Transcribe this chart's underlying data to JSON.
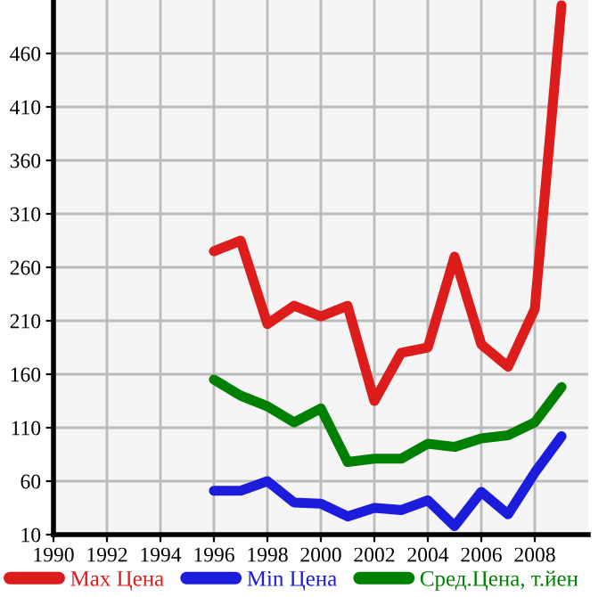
{
  "chart_data": {
    "type": "line",
    "x": [
      1996,
      1997,
      1998,
      1999,
      2000,
      2001,
      2002,
      2003,
      2004,
      2005,
      2006,
      2007,
      2008,
      2009
    ],
    "series": [
      {
        "name": "Max Цена",
        "color": "#dd1c1c",
        "values": [
          275,
          285,
          207,
          224,
          214,
          224,
          135,
          180,
          185,
          270,
          188,
          167,
          221,
          505
        ]
      },
      {
        "name": "Min Цена",
        "color": "#1c1cdd",
        "values": [
          51,
          51,
          60,
          40,
          39,
          27,
          35,
          33,
          42,
          18,
          50,
          29,
          68,
          102
        ]
      },
      {
        "name": "Сред.Цена, т.йен",
        "color": "#008000",
        "values": [
          155,
          140,
          130,
          115,
          128,
          78,
          81,
          81,
          95,
          92,
          100,
          103,
          115,
          148
        ]
      }
    ],
    "xlim": [
      1990,
      2010
    ],
    "xticks": [
      1990,
      1992,
      1994,
      1996,
      1998,
      2000,
      2002,
      2004,
      2006,
      2008
    ],
    "ylim": [
      10,
      510
    ],
    "yticks": [
      10,
      60,
      110,
      160,
      210,
      260,
      310,
      360,
      410,
      460
    ],
    "grid": true,
    "legend": "bottom",
    "marker": "none",
    "line_style": "solid"
  }
}
